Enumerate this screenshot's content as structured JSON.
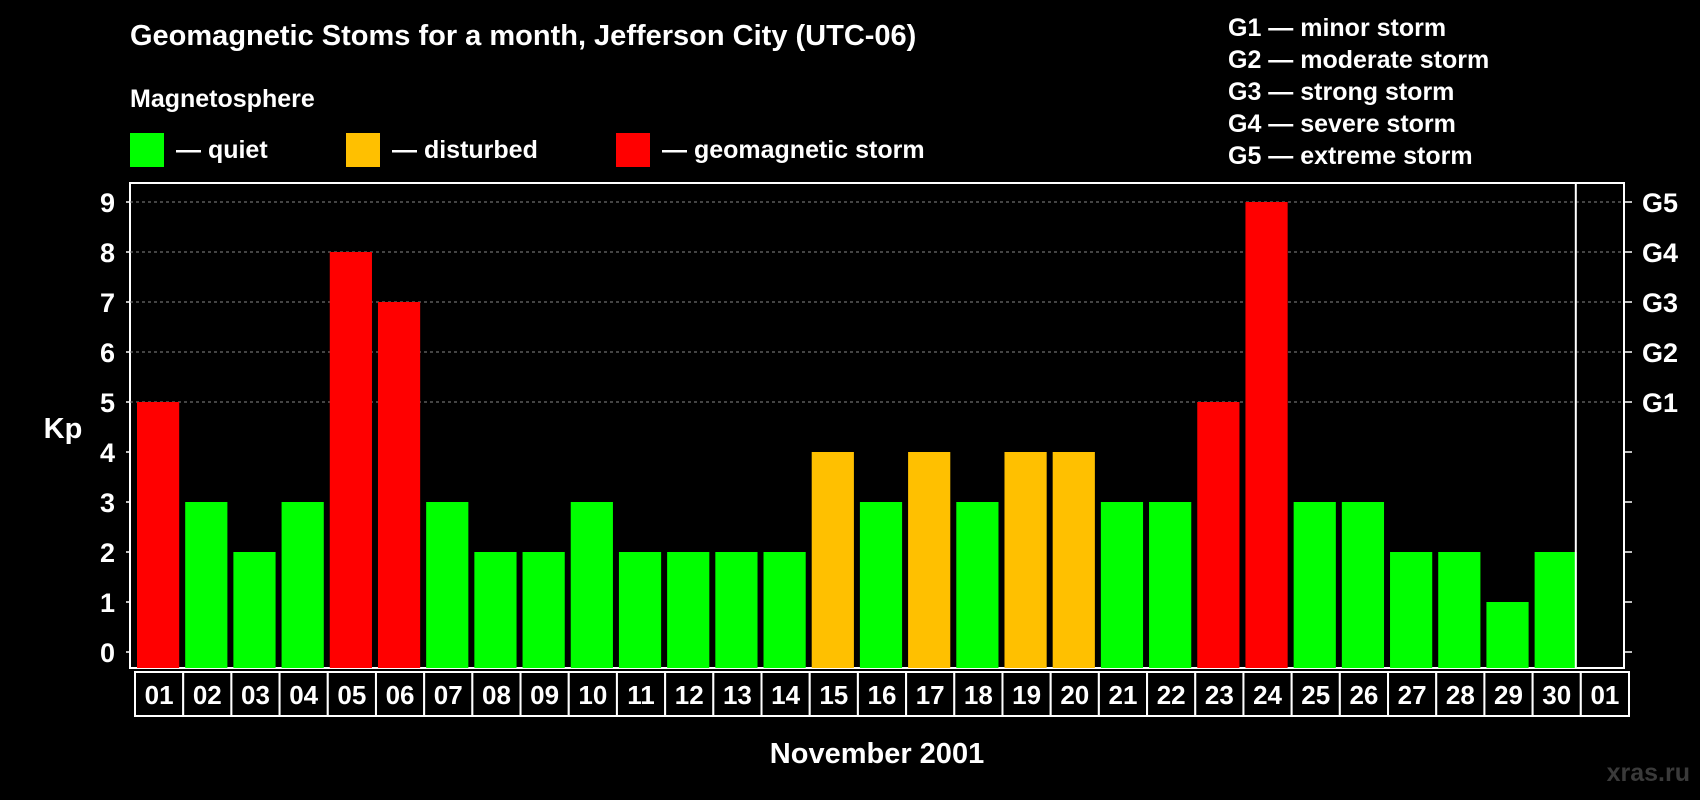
{
  "chart_data": {
    "type": "bar",
    "title": "Geomagnetic Stoms for a month, Jefferson City (UTC-06)",
    "subtitle": "Magnetosphere",
    "legend": [
      {
        "label": "— quiet",
        "color": "#00ff00"
      },
      {
        "label": "— disturbed",
        "color": "#ffc000"
      },
      {
        "label": "— geomagnetic storm",
        "color": "#ff0000"
      }
    ],
    "storm_scale": [
      "G1 — minor storm",
      "G2 — moderate storm",
      "G3 — strong storm",
      "G4 — severe storm",
      "G5 — extreme storm"
    ],
    "ylabel": "Kp",
    "xlabel": "November 2001",
    "ylim": [
      0,
      9
    ],
    "yticks": [
      "0",
      "1",
      "2",
      "3",
      "4",
      "5",
      "6",
      "7",
      "8",
      "9"
    ],
    "right_ticks": [
      {
        "value": 5,
        "label": "G1"
      },
      {
        "value": 6,
        "label": "G2"
      },
      {
        "value": 7,
        "label": "G3"
      },
      {
        "value": 8,
        "label": "G4"
      },
      {
        "value": 9,
        "label": "G5"
      }
    ],
    "grid": "dashed at Kp 5-9",
    "categories": [
      "01",
      "02",
      "03",
      "04",
      "05",
      "06",
      "07",
      "08",
      "09",
      "10",
      "11",
      "12",
      "13",
      "14",
      "15",
      "16",
      "17",
      "18",
      "19",
      "20",
      "21",
      "22",
      "23",
      "24",
      "25",
      "26",
      "27",
      "28",
      "29",
      "30",
      "01"
    ],
    "values": [
      5,
      3,
      2,
      3,
      8,
      7,
      3,
      2,
      2,
      3,
      2,
      2,
      2,
      2,
      4,
      3,
      4,
      3,
      4,
      4,
      3,
      3,
      5,
      9,
      3,
      3,
      2,
      2,
      1,
      2,
      null
    ],
    "colors": {
      "quiet": "#00ff00",
      "disturbed": "#ffc000",
      "storm": "#ff0000"
    }
  },
  "watermark": "xras.ru"
}
